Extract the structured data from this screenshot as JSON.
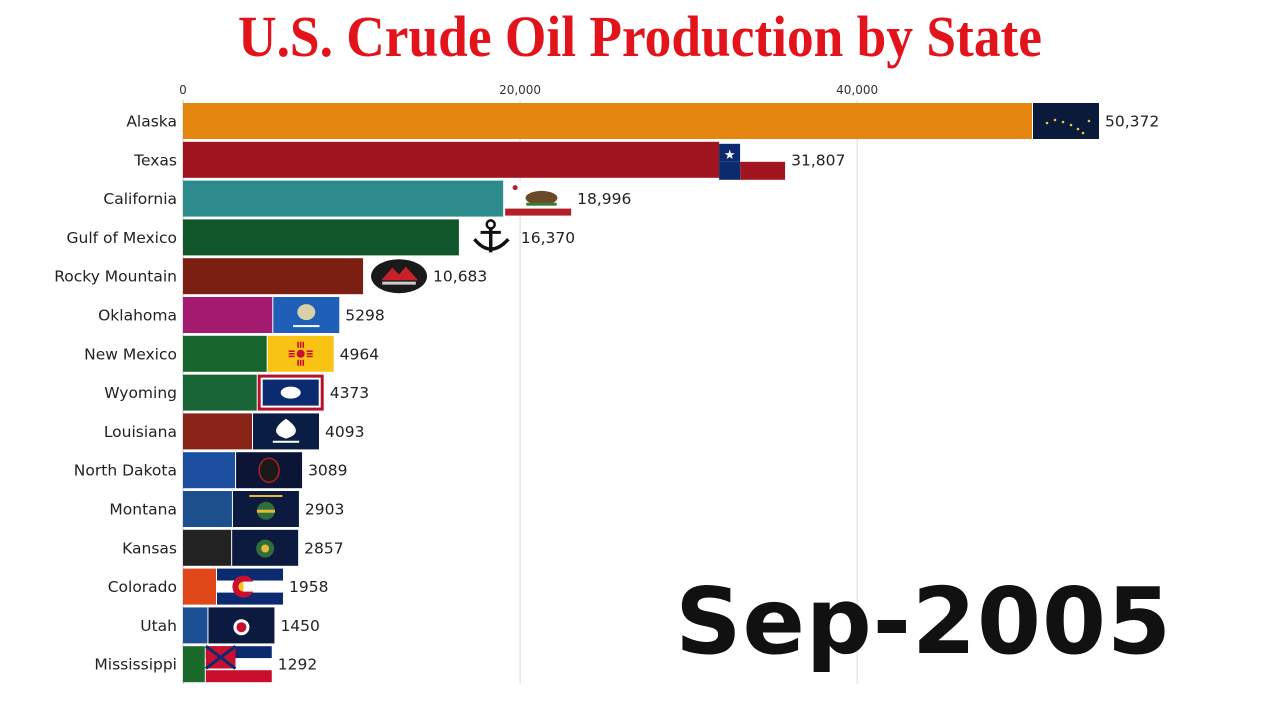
{
  "chart_data": {
    "type": "bar",
    "orientation": "horizontal",
    "title": "U.S. Crude Oil Production by State",
    "date": "Sep-2005",
    "xlim": [
      0,
      50372
    ],
    "ticks": [
      {
        "value": 0,
        "label": "0"
      },
      {
        "value": 20000,
        "label": "20,000"
      },
      {
        "value": 40000,
        "label": "40,000"
      }
    ],
    "grid": true,
    "items": [
      {
        "name": "Alaska",
        "value": 50372,
        "label": "50,372",
        "color": "#e4860f",
        "icon": "alaska-flag-icon"
      },
      {
        "name": "Texas",
        "value": 31807,
        "label": "31,807",
        "color": "#a0151f",
        "icon": "texas-flag-icon"
      },
      {
        "name": "California",
        "value": 18996,
        "label": "18,996",
        "color": "#2e8b8c",
        "icon": "california-flag-icon"
      },
      {
        "name": "Gulf of Mexico",
        "value": 16370,
        "label": "16,370",
        "color": "#11552a",
        "icon": "anchor-icon"
      },
      {
        "name": "Rocky Mountain",
        "value": 10683,
        "label": "10,683",
        "color": "#7b1f12",
        "icon": "rocky-mountain-logo-icon"
      },
      {
        "name": "Oklahoma",
        "value": 5298,
        "label": "5298",
        "color": "#a31b6e",
        "icon": "oklahoma-flag-icon"
      },
      {
        "name": "New Mexico",
        "value": 4964,
        "label": "4964",
        "color": "#17652c",
        "icon": "new-mexico-flag-icon"
      },
      {
        "name": "Wyoming",
        "value": 4373,
        "label": "4373",
        "color": "#1a6536",
        "icon": "wyoming-flag-icon"
      },
      {
        "name": "Louisiana",
        "value": 4093,
        "label": "4093",
        "color": "#8a2418",
        "icon": "louisiana-flag-icon"
      },
      {
        "name": "North Dakota",
        "value": 3089,
        "label": "3089",
        "color": "#1d4fa0",
        "icon": "north-dakota-flag-icon"
      },
      {
        "name": "Montana",
        "value": 2903,
        "label": "2903",
        "color": "#1d4f8c",
        "icon": "montana-flag-icon"
      },
      {
        "name": "Kansas",
        "value": 2857,
        "label": "2857",
        "color": "#232323",
        "icon": "kansas-flag-icon"
      },
      {
        "name": "Colorado",
        "value": 1958,
        "label": "1958",
        "color": "#e0481a",
        "icon": "colorado-flag-icon"
      },
      {
        "name": "Utah",
        "value": 1450,
        "label": "1450",
        "color": "#1c4f94",
        "icon": "utah-flag-icon"
      },
      {
        "name": "Mississippi",
        "value": 1292,
        "label": "1292",
        "color": "#1a6a2b",
        "icon": "mississippi-flag-icon"
      }
    ]
  }
}
